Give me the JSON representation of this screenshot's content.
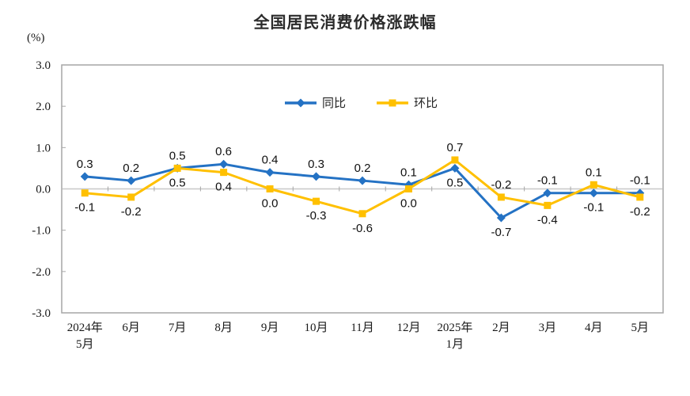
{
  "chart_data": {
    "type": "line",
    "title": "全国居民消费价格涨跌幅",
    "unit": "(%)",
    "categories": [
      "2024年\n5月",
      "6月",
      "7月",
      "8月",
      "9月",
      "10月",
      "11月",
      "12月",
      "2025年\n1月",
      "2月",
      "3月",
      "4月",
      "5月"
    ],
    "series": [
      {
        "name": "同比",
        "key": "yoy",
        "color": "#2472C4",
        "marker": "diamond",
        "values": [
          0.3,
          0.2,
          0.5,
          0.6,
          0.4,
          0.3,
          0.2,
          0.1,
          0.5,
          -0.7,
          -0.1,
          -0.1,
          -0.1
        ],
        "label_positions": [
          "above",
          "above",
          "above",
          "above",
          "above",
          "above",
          "above",
          "above",
          "below",
          "below",
          "above",
          "below",
          "above"
        ]
      },
      {
        "name": "环比",
        "key": "mom",
        "color": "#FFC000",
        "marker": "square",
        "values": [
          -0.1,
          -0.2,
          0.5,
          0.4,
          0.0,
          -0.3,
          -0.6,
          0.0,
          0.7,
          -0.2,
          -0.4,
          0.1,
          -0.2
        ],
        "label_positions": [
          "below",
          "below",
          "below",
          "below",
          "below",
          "below",
          "below",
          "below",
          "above",
          "above",
          "below",
          "above",
          "below"
        ]
      }
    ],
    "ylim": [
      -3.0,
      3.0
    ],
    "yticks": [
      3.0,
      2.0,
      1.0,
      0.0,
      -1.0,
      -2.0,
      -3.0
    ],
    "grid": false,
    "legend_position": "top-center-inside",
    "colors": {
      "plot_border": "#A6A6A6",
      "zero_line": "#C8C8C8",
      "tick": "#A6A6A6"
    }
  }
}
